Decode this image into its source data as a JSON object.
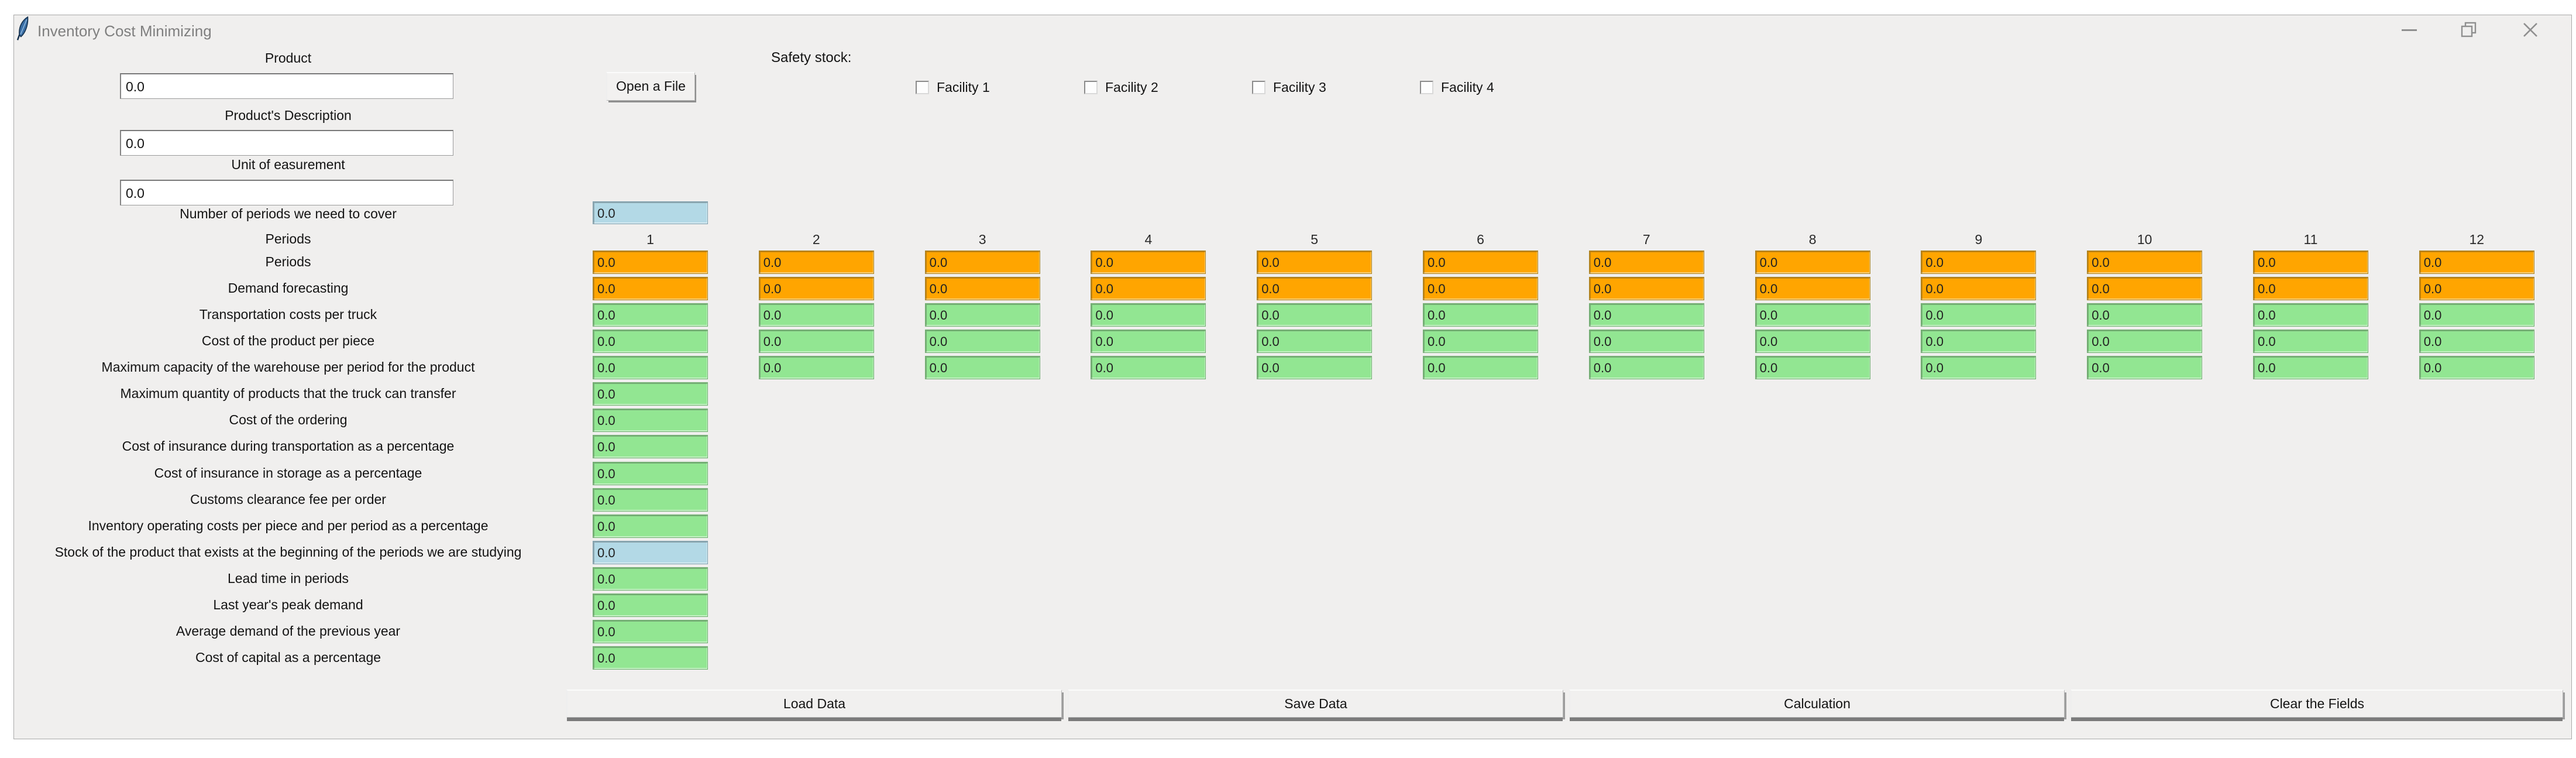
{
  "window": {
    "title": "Inventory Cost Minimizing"
  },
  "icons": {
    "app": "feather-icon",
    "minimize": "minimize-icon",
    "restore": "restore-icon",
    "close": "close-icon"
  },
  "top_form": {
    "fields": [
      {
        "label": "Product",
        "value": "0.0"
      },
      {
        "label": "Product's Description",
        "value": "0.0"
      },
      {
        "label": "Unit of easurement",
        "value": "0.0"
      }
    ],
    "open_file_button": "Open a File"
  },
  "safety_stock": {
    "label": "Safety stock:",
    "facilities": [
      {
        "label": "Facility 1",
        "checked": false
      },
      {
        "label": "Facility 2",
        "checked": false
      },
      {
        "label": "Facility 3",
        "checked": false
      },
      {
        "label": "Facility 4",
        "checked": false
      }
    ]
  },
  "periods_count": {
    "label": "Number of periods we need to cover",
    "value": "0.0"
  },
  "grid": {
    "periods_header_label": "Periods",
    "column_headers": [
      "1",
      "2",
      "3",
      "4",
      "5",
      "6",
      "7",
      "8",
      "9",
      "10",
      "11",
      "12"
    ],
    "rows": [
      {
        "label": "Periods",
        "color": "orange",
        "values": [
          "0.0",
          "0.0",
          "0.0",
          "0.0",
          "0.0",
          "0.0",
          "0.0",
          "0.0",
          "0.0",
          "0.0",
          "0.0",
          "0.0"
        ]
      },
      {
        "label": "Demand forecasting",
        "color": "orange",
        "values": [
          "0.0",
          "0.0",
          "0.0",
          "0.0",
          "0.0",
          "0.0",
          "0.0",
          "0.0",
          "0.0",
          "0.0",
          "0.0",
          "0.0"
        ]
      },
      {
        "label": "Transportation costs per truck",
        "color": "green",
        "values": [
          "0.0",
          "0.0",
          "0.0",
          "0.0",
          "0.0",
          "0.0",
          "0.0",
          "0.0",
          "0.0",
          "0.0",
          "0.0",
          "0.0"
        ]
      },
      {
        "label": "Cost of the product per piece",
        "color": "green",
        "values": [
          "0.0",
          "0.0",
          "0.0",
          "0.0",
          "0.0",
          "0.0",
          "0.0",
          "0.0",
          "0.0",
          "0.0",
          "0.0",
          "0.0"
        ]
      },
      {
        "label": "Maximum capacity of the warehouse per period for the product",
        "color": "green",
        "values": [
          "0.0",
          "0.0",
          "0.0",
          "0.0",
          "0.0",
          "0.0",
          "0.0",
          "0.0",
          "0.0",
          "0.0",
          "0.0",
          "0.0"
        ]
      },
      {
        "label": "Maximum quantity of products that the truck can transfer",
        "color": "green",
        "values": [
          "0.0"
        ]
      },
      {
        "label": "Cost of the ordering",
        "color": "green",
        "values": [
          "0.0"
        ]
      },
      {
        "label": "Cost of insurance during transportation as a percentage",
        "color": "green",
        "values": [
          "0.0"
        ]
      },
      {
        "label": "Cost of insurance in storage as a percentage",
        "color": "green",
        "values": [
          "0.0"
        ]
      },
      {
        "label": "Customs clearance fee per order",
        "color": "green",
        "values": [
          "0.0"
        ]
      },
      {
        "label": "Inventory operating costs per piece and per period as a percentage",
        "color": "green",
        "values": [
          "0.0"
        ]
      },
      {
        "label": "Stock of the product that exists at the beginning of the periods we are studying",
        "color": "blue",
        "values": [
          "0.0"
        ]
      },
      {
        "label": "Lead time in periods",
        "color": "green",
        "values": [
          "0.0"
        ]
      },
      {
        "label": "Last year's peak demand",
        "color": "green",
        "values": [
          "0.0"
        ]
      },
      {
        "label": "Average demand of the previous year",
        "color": "green",
        "values": [
          "0.0"
        ]
      },
      {
        "label": "Cost of capital as a percentage",
        "color": "green",
        "values": [
          "0.0"
        ]
      }
    ]
  },
  "footer_buttons": [
    {
      "label": "Load Data"
    },
    {
      "label": "Save Data"
    },
    {
      "label": "Calculation"
    },
    {
      "label": "Clear the Fields"
    }
  ],
  "colors": {
    "orange_cell": "#FFA500",
    "green_cell": "#92E692",
    "blue_cell": "#B3D9E6",
    "window_bg": "#F0EFEE",
    "title_text": "#7F7F7F"
  }
}
